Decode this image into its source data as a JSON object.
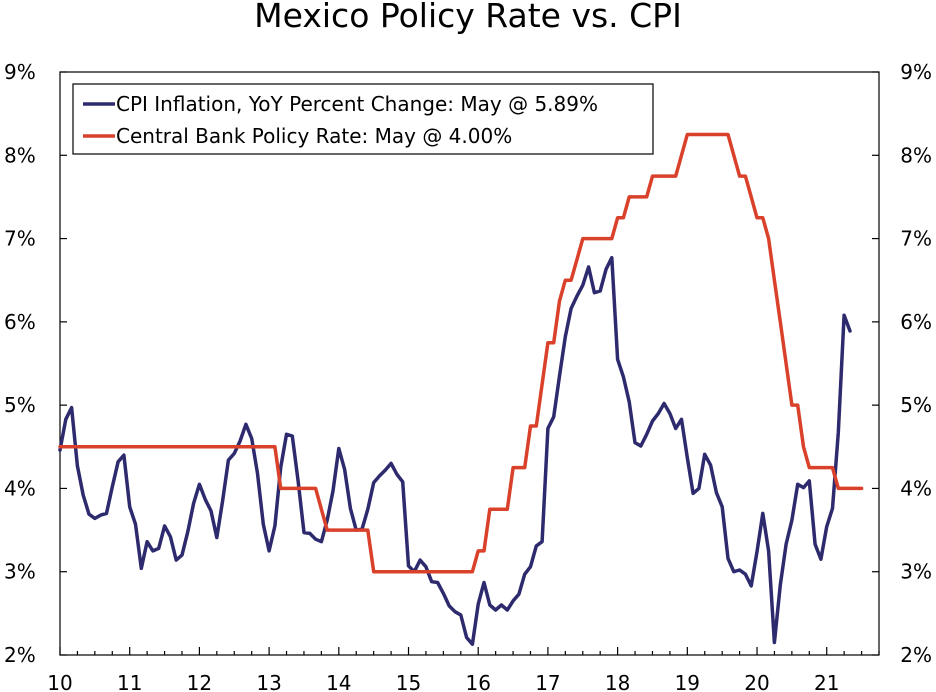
{
  "chart_data": {
    "type": "line",
    "title": "Mexico Policy Rate vs. CPI",
    "xlabel": "",
    "ylabel": "",
    "x_range": [
      2010,
      2021.75
    ],
    "ylim": [
      2,
      9
    ],
    "x_tick_labels": [
      {
        "label": "10",
        "value": 2010
      },
      {
        "label": "11",
        "value": 2011
      },
      {
        "label": "12",
        "value": 2012
      },
      {
        "label": "13",
        "value": 2013
      },
      {
        "label": "14",
        "value": 2014
      },
      {
        "label": "15",
        "value": 2015
      },
      {
        "label": "16",
        "value": 2016
      },
      {
        "label": "17",
        "value": 2017
      },
      {
        "label": "18",
        "value": 2018
      },
      {
        "label": "19",
        "value": 2019
      },
      {
        "label": "20",
        "value": 2020
      },
      {
        "label": "21",
        "value": 2021
      }
    ],
    "y_ticks": [
      2,
      3,
      4,
      5,
      6,
      7,
      8,
      9
    ],
    "y_tick_labels": [
      "2%",
      "3%",
      "4%",
      "5%",
      "6%",
      "7%",
      "8%",
      "9%"
    ],
    "legend_position": "top-left",
    "series": [
      {
        "name": "CPI Inflation, YoY Percent Change: May @ 5.89%",
        "color": "#2e2a6e",
        "x_start": 2010,
        "x_step": 0.083333,
        "values": [
          4.46,
          4.83,
          4.97,
          4.27,
          3.92,
          3.69,
          3.64,
          3.68,
          3.7,
          4.02,
          4.32,
          4.4,
          3.78,
          3.57,
          3.04,
          3.36,
          3.25,
          3.28,
          3.55,
          3.42,
          3.14,
          3.2,
          3.48,
          3.82,
          4.05,
          3.87,
          3.73,
          3.41,
          3.85,
          4.34,
          4.42,
          4.57,
          4.77,
          4.6,
          4.18,
          3.57,
          3.25,
          3.55,
          4.25,
          4.65,
          4.63,
          4.09,
          3.47,
          3.46,
          3.39,
          3.36,
          3.62,
          3.97,
          4.48,
          4.23,
          3.76,
          3.5,
          3.51,
          3.75,
          4.07,
          4.15,
          4.22,
          4.3,
          4.17,
          4.08,
          3.07,
          3.0,
          3.14,
          3.06,
          2.88,
          2.87,
          2.74,
          2.59,
          2.52,
          2.48,
          2.21,
          2.13,
          2.61,
          2.87,
          2.6,
          2.54,
          2.6,
          2.54,
          2.65,
          2.73,
          2.97,
          3.06,
          3.31,
          3.36,
          4.72,
          4.86,
          5.35,
          5.82,
          6.16,
          6.31,
          6.44,
          6.66,
          6.35,
          6.37,
          6.63,
          6.77,
          5.55,
          5.34,
          5.04,
          4.55,
          4.51,
          4.65,
          4.81,
          4.9,
          5.02,
          4.9,
          4.72,
          4.83,
          4.37,
          3.94,
          4.0,
          4.41,
          4.28,
          3.95,
          3.78,
          3.16,
          3.0,
          3.02,
          2.97,
          2.83,
          3.24,
          3.7,
          3.25,
          2.15,
          2.84,
          3.33,
          3.62,
          4.05,
          4.01,
          4.09,
          3.33,
          3.15,
          3.54,
          3.76,
          4.67,
          6.08,
          5.89
        ]
      },
      {
        "name": "Central Bank Policy Rate: May @ 4.00%",
        "color": "#d9412b",
        "x_start": 2010,
        "x_step": 0.083333,
        "values": [
          4.5,
          4.5,
          4.5,
          4.5,
          4.5,
          4.5,
          4.5,
          4.5,
          4.5,
          4.5,
          4.5,
          4.5,
          4.5,
          4.5,
          4.5,
          4.5,
          4.5,
          4.5,
          4.5,
          4.5,
          4.5,
          4.5,
          4.5,
          4.5,
          4.5,
          4.5,
          4.5,
          4.5,
          4.5,
          4.5,
          4.5,
          4.5,
          4.5,
          4.5,
          4.5,
          4.5,
          4.5,
          4.5,
          4.0,
          4.0,
          4.0,
          4.0,
          4.0,
          4.0,
          4.0,
          3.75,
          3.5,
          3.5,
          3.5,
          3.5,
          3.5,
          3.5,
          3.5,
          3.5,
          3.0,
          3.0,
          3.0,
          3.0,
          3.0,
          3.0,
          3.0,
          3.0,
          3.0,
          3.0,
          3.0,
          3.0,
          3.0,
          3.0,
          3.0,
          3.0,
          3.0,
          3.0,
          3.25,
          3.25,
          3.75,
          3.75,
          3.75,
          3.75,
          4.25,
          4.25,
          4.25,
          4.75,
          4.75,
          5.25,
          5.75,
          5.75,
          6.25,
          6.5,
          6.5,
          6.75,
          7.0,
          7.0,
          7.0,
          7.0,
          7.0,
          7.0,
          7.25,
          7.25,
          7.5,
          7.5,
          7.5,
          7.5,
          7.75,
          7.75,
          7.75,
          7.75,
          7.75,
          8.0,
          8.25,
          8.25,
          8.25,
          8.25,
          8.25,
          8.25,
          8.25,
          8.25,
          8.0,
          7.75,
          7.75,
          7.5,
          7.25,
          7.25,
          7.0,
          6.5,
          6.0,
          5.5,
          5.0,
          5.0,
          4.5,
          4.25,
          4.25,
          4.25,
          4.25,
          4.25,
          4.0,
          4.0,
          4.0,
          4.0,
          4.0
        ]
      }
    ]
  }
}
